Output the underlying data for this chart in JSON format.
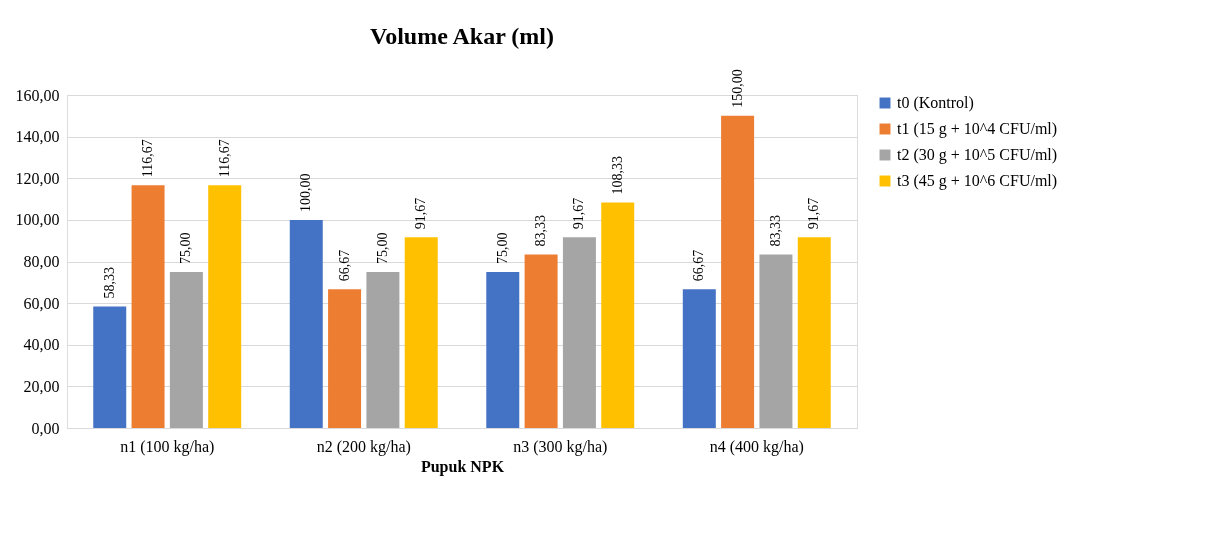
{
  "chart_data": {
    "type": "bar",
    "title": "Volume Akar (ml)",
    "xlabel": "Pupuk NPK",
    "categories": [
      "n1 (100 kg/ha)",
      "n2 (200 kg/ha)",
      "n3 (300 kg/ha)",
      "n4 (400 kg/ha)"
    ],
    "series": [
      {
        "name": "t0 (Kontrol)",
        "color": "#4472c4",
        "values": [
          58.33,
          100.0,
          75.0,
          66.67
        ],
        "value_labels": [
          "58,33",
          "100,00",
          "75,00",
          "66,67"
        ]
      },
      {
        "name": "t1 (15 g + 10^4 CFU/ml)",
        "color": "#ed7d31",
        "values": [
          116.67,
          66.67,
          83.33,
          150.0
        ],
        "value_labels": [
          "116,67",
          "66,67",
          "83,33",
          "150,00"
        ]
      },
      {
        "name": "t2 (30 g + 10^5 CFU/ml)",
        "color": "#a5a5a5",
        "values": [
          75.0,
          75.0,
          91.67,
          83.33
        ],
        "value_labels": [
          "75,00",
          "75,00",
          "91,67",
          "83,33"
        ]
      },
      {
        "name": "t3 (45 g + 10^6 CFU/ml)",
        "color": "#ffc000",
        "values": [
          116.67,
          91.67,
          108.33,
          91.67
        ],
        "value_labels": [
          "116,67",
          "91,67",
          "108,33",
          "91,67"
        ]
      }
    ],
    "ylim": [
      0,
      160
    ],
    "yticks": [
      {
        "value": 0,
        "label": "0,00"
      },
      {
        "value": 20,
        "label": "20,00"
      },
      {
        "value": 40,
        "label": "40,00"
      },
      {
        "value": 60,
        "label": "60,00"
      },
      {
        "value": 80,
        "label": "80,00"
      },
      {
        "value": 100,
        "label": "100,00"
      },
      {
        "value": 120,
        "label": "120,00"
      },
      {
        "value": 140,
        "label": "140,00"
      },
      {
        "value": 160,
        "label": "160,00"
      }
    ],
    "grid": "y",
    "legend": "right"
  }
}
